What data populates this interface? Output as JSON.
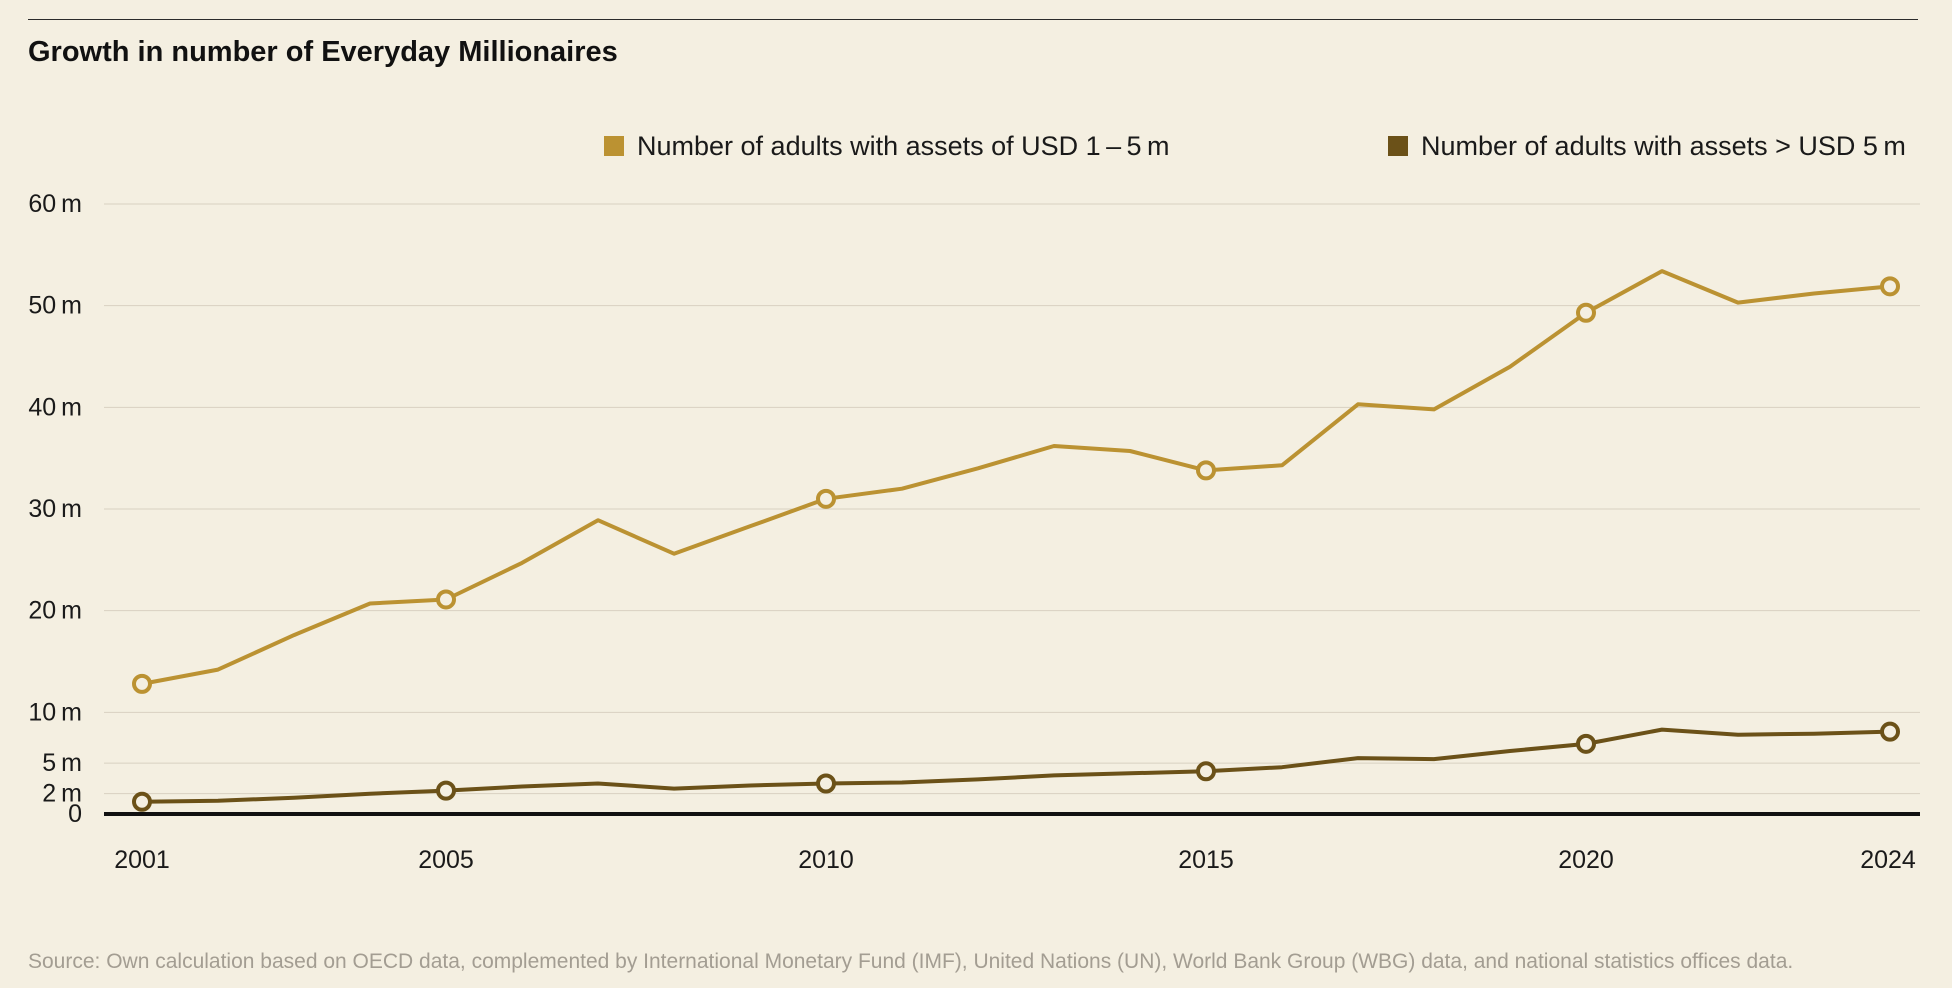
{
  "title": "Growth in number of Everyday Millionaires",
  "source": "Source: Own calculation based on OECD data, complemented by International Monetary Fund (IMF), United Nations (UN), World Bank Group (WBG) data, and national statistics offices data.",
  "colors": {
    "background": "#f4efe1",
    "series_1_5m": "#bb9232",
    "series_gt_5m": "#6b5118",
    "gridline": "#d8d1c1",
    "baseline": "#111111"
  },
  "chart_data": {
    "type": "line",
    "title": "Growth in number of Everyday Millionaires",
    "xlabel": "",
    "ylabel": "",
    "x": [
      2001,
      2002,
      2003,
      2004,
      2005,
      2006,
      2007,
      2008,
      2009,
      2010,
      2011,
      2012,
      2013,
      2014,
      2015,
      2016,
      2017,
      2018,
      2019,
      2020,
      2021,
      2022,
      2023,
      2024
    ],
    "x_tick_labels": [
      "2001",
      "2005",
      "2010",
      "2015",
      "2020",
      "2024"
    ],
    "x_tick_values": [
      2001,
      2005,
      2010,
      2015,
      2020,
      2024
    ],
    "y_tick_labels": [
      "0",
      "2 m",
      "5 m",
      "10 m",
      "20 m",
      "30 m",
      "40 m",
      "50 m",
      "60 m"
    ],
    "y_tick_values": [
      0,
      2,
      5,
      10,
      20,
      30,
      40,
      50,
      60
    ],
    "ylim": [
      0,
      60
    ],
    "grid": "horizontal",
    "legend_position": "top-right",
    "marker_years": [
      2001,
      2005,
      2010,
      2015,
      2020,
      2024
    ],
    "series": [
      {
        "name": "Number of adults with assets of USD 1 – 5 m",
        "color": "#bb9232",
        "values": [
          12.8,
          14.2,
          17.6,
          20.7,
          21.1,
          24.7,
          28.9,
          25.6,
          28.3,
          31.0,
          32.0,
          34.0,
          36.2,
          35.7,
          33.8,
          34.3,
          40.3,
          39.8,
          44.0,
          49.3,
          53.4,
          50.3,
          51.2,
          51.9
        ]
      },
      {
        "name": "Number of adults with assets > USD 5 m",
        "color": "#6b5118",
        "values": [
          1.2,
          1.3,
          1.6,
          2.0,
          2.3,
          2.7,
          3.0,
          2.5,
          2.8,
          3.0,
          3.1,
          3.4,
          3.8,
          4.0,
          4.2,
          4.6,
          5.5,
          5.4,
          6.2,
          6.9,
          8.3,
          7.8,
          7.9,
          8.1
        ]
      }
    ]
  }
}
